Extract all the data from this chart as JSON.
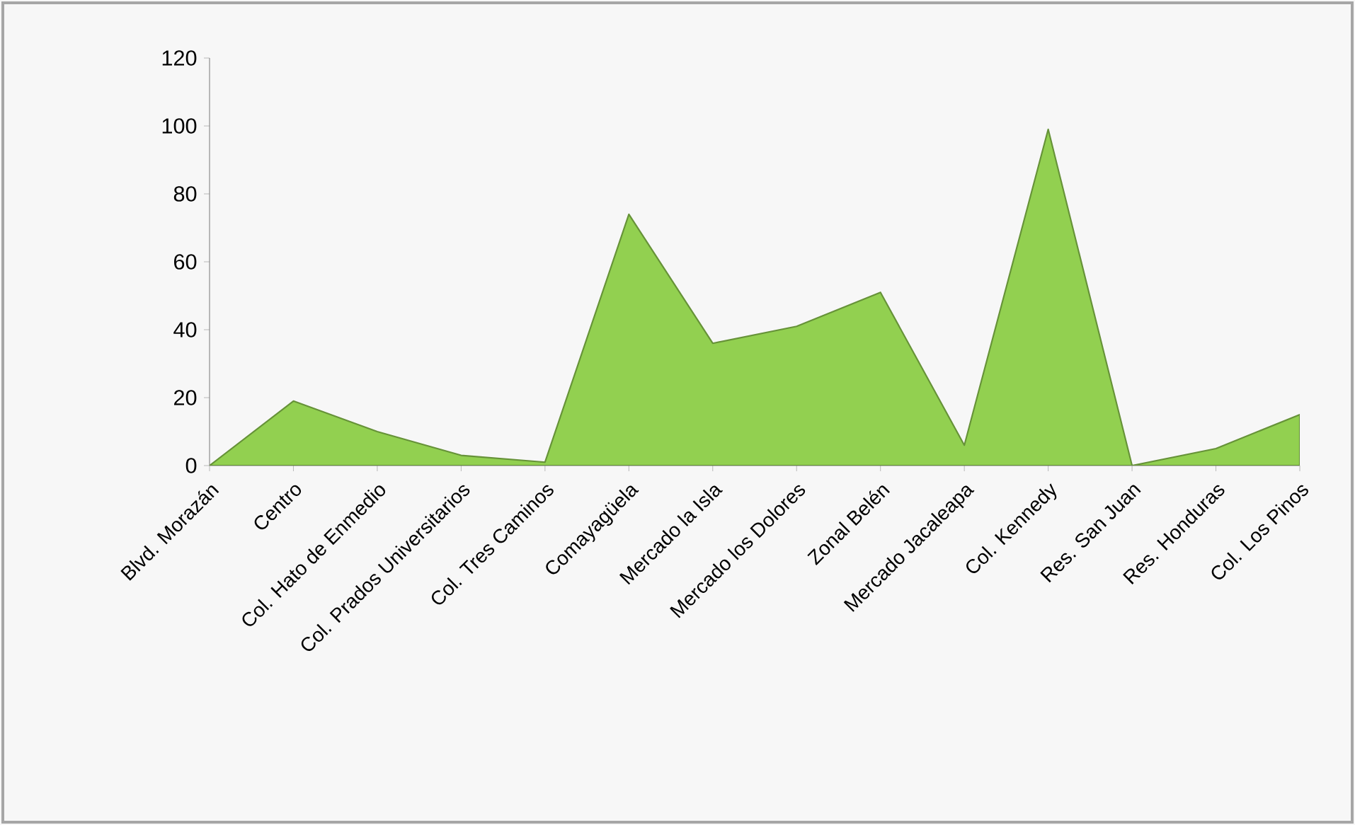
{
  "chart_data": {
    "type": "area",
    "categories": [
      "Blvd. Morazán",
      "Centro",
      "Col. Hato de Enmedio",
      "Col. Prados Universitarios",
      "Col. Tres Caminos",
      "Comayagüela",
      "Mercado la Isla",
      "Mercado los Dolores",
      "Zonal Belén",
      "Mercado Jacaleapa",
      "Col. Kennedy",
      "Res. San Juan",
      "Res. Honduras",
      "Col. Los Pinos"
    ],
    "values": [
      0,
      19,
      10,
      3,
      1,
      74,
      36,
      41,
      51,
      6,
      99,
      0,
      5,
      15
    ],
    "color": "#92d050",
    "ylim": [
      0,
      120
    ],
    "yticks": [
      0,
      20,
      40,
      60,
      80,
      100,
      120
    ]
  }
}
